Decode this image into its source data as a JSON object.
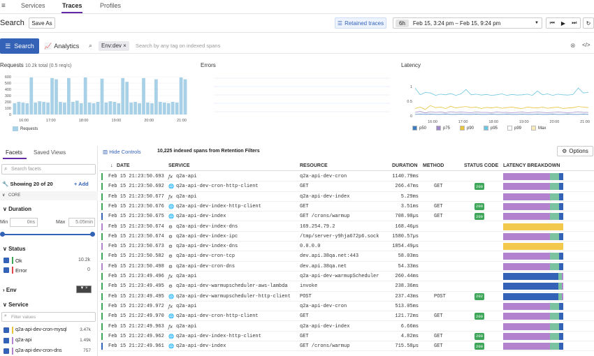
{
  "nav": {
    "tabs": [
      "Services",
      "Traces",
      "Profiles"
    ]
  },
  "header": {
    "title": "Search",
    "save_as": "Save As",
    "retained": "Retained traces",
    "range_short": "6h",
    "range": "Feb 15, 3:24 pm – Feb 15, 9:24 pm"
  },
  "query": {
    "search_btn": "Search",
    "analytics": "Analytics",
    "pill": "Env:dev",
    "placeholder": "Search by any tag on indexed spans"
  },
  "requests": {
    "title": "Requests",
    "summary": "10.2k total (0.5 req/s)",
    "legend": "Requests",
    "yticks": [
      "600",
      "500",
      "400",
      "300",
      "200",
      "100",
      "0"
    ],
    "xticks": [
      "16:00",
      "17:00",
      "18:00",
      "19:00",
      "20:00",
      "21:00"
    ],
    "values": [
      180,
      200,
      190,
      180,
      590,
      190,
      210,
      200,
      190,
      580,
      560,
      200,
      190,
      580,
      200,
      220,
      180,
      590,
      190,
      180,
      200,
      570,
      190,
      210,
      200,
      180,
      580,
      520,
      190,
      200,
      180,
      580,
      190,
      180,
      560,
      200,
      190,
      180,
      200,
      190,
      590,
      560
    ]
  },
  "errors": {
    "title": "Errors"
  },
  "latency": {
    "title": "Latency",
    "yticks": [
      "1",
      "0.5",
      "0"
    ],
    "xticks": [
      "16:00",
      "17:00",
      "18:00",
      "19:00",
      "20:00",
      "21:00"
    ],
    "legend": [
      {
        "name": "p50",
        "color": "#3d7cbf"
      },
      {
        "name": "p75",
        "color": "#9e87c7"
      },
      {
        "name": "p90",
        "color": "#e8c33b"
      },
      {
        "name": "p95",
        "color": "#6ec7e0"
      },
      {
        "name": "p99",
        "color": "#ffffff"
      },
      {
        "name": "Max",
        "color": "#f7eab8"
      }
    ]
  },
  "left": {
    "tab_facets": "Facets",
    "tab_saved": "Saved Views",
    "search_facets": "Search facets",
    "showing": "Showing 20 of 20",
    "add": "+ Add",
    "core": "CORE",
    "duration": "Duration",
    "min_label": "Min",
    "min_val": "0ns",
    "max_label": "Max",
    "max_val": "5.05min",
    "status": "Status",
    "ok": "Ok",
    "ok_count": "10.2k",
    "error": "Error",
    "error_count": "0",
    "env": "Env",
    "service": "Service",
    "filter_values": "Filter values",
    "services": [
      {
        "name": "q2a-api-dev-cron-mysql",
        "count": "3.47k",
        "color": "#e8c33b"
      },
      {
        "name": "q2a-api",
        "count": "1.49k",
        "color": "#b382cf"
      },
      {
        "name": "q2a-api-dev-cron-dns",
        "count": "757",
        "color": "#b382cf"
      }
    ]
  },
  "table": {
    "hide_controls": "Hide Controls",
    "summary": "10,225 indexed spans from Retention Filters",
    "options": "Options",
    "headers": [
      "DATE",
      "SERVICE",
      "RESOURCE",
      "DURATION",
      "METHOD",
      "STATUS CODE",
      "LATENCY BREAKDOWN"
    ],
    "rows": [
      {
        "date": "Feb 15 21:23:50.693",
        "svc": "q2a-api",
        "icon": "fx",
        "res": "q2a-api-dev-cron",
        "dur": "1140.79ms",
        "method": "",
        "status": "",
        "bar": "#3ea659",
        "lat": [
          [
            "#b382cf",
            78
          ],
          [
            "#7ac2a0",
            15
          ],
          [
            "#3462b7",
            7
          ]
        ]
      },
      {
        "date": "Feb 15 21:23:50.692",
        "svc": "q2a-api-dev-cron-http-client",
        "icon": "globe",
        "res": "GET",
        "dur": "266.47ms",
        "method": "GET",
        "status": "200",
        "bar": "#3ea659",
        "lat": [
          [
            "#b382cf",
            78
          ],
          [
            "#7ac2a0",
            15
          ],
          [
            "#3462b7",
            7
          ]
        ]
      },
      {
        "date": "Feb 15 21:23:50.677",
        "svc": "q2a-api",
        "icon": "fx",
        "res": "q2a-api-dev-index",
        "dur": "5.29ms",
        "method": "",
        "status": "",
        "bar": "#3ea659",
        "lat": [
          [
            "#b382cf",
            78
          ],
          [
            "#7ac2a0",
            15
          ],
          [
            "#3462b7",
            7
          ]
        ]
      },
      {
        "date": "Feb 15 21:23:50.676",
        "svc": "q2a-api-dev-index-http-client",
        "icon": "globe",
        "res": "GET",
        "dur": "3.51ms",
        "method": "GET",
        "status": "200",
        "bar": "#3ea659",
        "lat": [
          [
            "#b382cf",
            78
          ],
          [
            "#7ac2a0",
            15
          ],
          [
            "#3462b7",
            7
          ]
        ]
      },
      {
        "date": "Feb 15 21:23:50.675",
        "svc": "q2a-api-dev-index",
        "icon": "globe",
        "res": "GET /crons/warmup",
        "dur": "708.98µs",
        "method": "GET",
        "status": "200",
        "bar": "#3462b7",
        "lat": [
          [
            "#b382cf",
            78
          ],
          [
            "#7ac2a0",
            15
          ],
          [
            "#3462b7",
            7
          ]
        ]
      },
      {
        "date": "Feb 15 21:23:50.674",
        "svc": "q2a-api-dev-index-dns",
        "icon": "gears",
        "res": "169.254.79.2",
        "dur": "168.46µs",
        "method": "",
        "status": "",
        "bar": "#b382cf",
        "lat": [
          [
            "#f2c94c",
            100
          ]
        ]
      },
      {
        "date": "Feb 15 21:23:50.674",
        "svc": "q2a-api-dev-index-ipc",
        "icon": "gears",
        "res": "/tmp/server-y9hja672p6.sock",
        "dur": "1580.57µs",
        "method": "",
        "status": "",
        "bar": "#3ea659",
        "lat": [
          [
            "#b382cf",
            78
          ],
          [
            "#7ac2a0",
            15
          ],
          [
            "#3462b7",
            7
          ]
        ]
      },
      {
        "date": "Feb 15 21:23:50.673",
        "svc": "q2a-api-dev-index-dns",
        "icon": "gears",
        "res": "0.0.0.0",
        "dur": "1854.49µs",
        "method": "",
        "status": "",
        "bar": "#b382cf",
        "lat": [
          [
            "#f2c94c",
            100
          ]
        ]
      },
      {
        "date": "Feb 15 21:23:50.582",
        "svc": "q2a-api-dev-cron-tcp",
        "icon": "gears",
        "res": "dev.api.38qa.net:443",
        "dur": "58.03ms",
        "method": "",
        "status": "",
        "bar": "#3ea659",
        "lat": [
          [
            "#b382cf",
            78
          ],
          [
            "#7ac2a0",
            15
          ],
          [
            "#3462b7",
            7
          ]
        ]
      },
      {
        "date": "Feb 15 21:23:50.498",
        "svc": "q2a-api-dev-cron-dns",
        "icon": "gears",
        "res": "dev.api.38qa.net",
        "dur": "54.33ms",
        "method": "",
        "status": "",
        "bar": "#b382cf",
        "lat": [
          [
            "#b382cf",
            78
          ],
          [
            "#7ac2a0",
            15
          ],
          [
            "#3462b7",
            7
          ]
        ]
      },
      {
        "date": "Feb 15 21:23:49.496",
        "svc": "q2a-api",
        "icon": "fx",
        "res": "q2a-api-dev-warmupScheduler",
        "dur": "260.44ms",
        "method": "",
        "status": "",
        "bar": "#3ea659",
        "lat": [
          [
            "#3462b7",
            92
          ],
          [
            "#7ac2a0",
            6
          ],
          [
            "#b382cf",
            2
          ]
        ]
      },
      {
        "date": "Feb 15 21:23:49.495",
        "svc": "q2a-api-dev-warmupscheduler-aws-lambda",
        "icon": "gears",
        "res": "invoke",
        "dur": "238.36ms",
        "method": "",
        "status": "",
        "bar": "#3ea659",
        "lat": [
          [
            "#3462b7",
            92
          ],
          [
            "#7ac2a0",
            6
          ],
          [
            "#b382cf",
            2
          ]
        ]
      },
      {
        "date": "Feb 15 21:23:49.495",
        "svc": "q2a-api-dev-warmupscheduler-http-client",
        "icon": "globe",
        "res": "POST",
        "dur": "237.43ms",
        "method": "POST",
        "status": "202",
        "bar": "#3ea659",
        "lat": [
          [
            "#3462b7",
            92
          ],
          [
            "#7ac2a0",
            6
          ],
          [
            "#b382cf",
            2
          ]
        ]
      },
      {
        "date": "Feb 15 21:22:49.972",
        "svc": "q2a-api",
        "icon": "fx",
        "res": "q2a-api-dev-cron",
        "dur": "513.05ms",
        "method": "",
        "status": "",
        "bar": "#3ea659",
        "lat": [
          [
            "#b382cf",
            78
          ],
          [
            "#7ac2a0",
            15
          ],
          [
            "#3462b7",
            7
          ]
        ]
      },
      {
        "date": "Feb 15 21:22:49.970",
        "svc": "q2a-api-dev-cron-http-client",
        "icon": "globe",
        "res": "GET",
        "dur": "121.72ms",
        "method": "GET",
        "status": "200",
        "bar": "#3ea659",
        "lat": [
          [
            "#b382cf",
            78
          ],
          [
            "#7ac2a0",
            15
          ],
          [
            "#3462b7",
            7
          ]
        ]
      },
      {
        "date": "Feb 15 21:22:49.963",
        "svc": "q2a-api",
        "icon": "fx",
        "res": "q2a-api-dev-index",
        "dur": "6.66ms",
        "method": "",
        "status": "",
        "bar": "#3ea659",
        "lat": [
          [
            "#b382cf",
            78
          ],
          [
            "#7ac2a0",
            15
          ],
          [
            "#3462b7",
            7
          ]
        ]
      },
      {
        "date": "Feb 15 21:22:49.962",
        "svc": "q2a-api-dev-index-http-client",
        "icon": "globe",
        "res": "GET",
        "dur": "4.82ms",
        "method": "GET",
        "status": "200",
        "bar": "#3ea659",
        "lat": [
          [
            "#b382cf",
            78
          ],
          [
            "#7ac2a0",
            15
          ],
          [
            "#3462b7",
            7
          ]
        ]
      },
      {
        "date": "Feb 15 21:22:49.961",
        "svc": "q2a-api-dev-index",
        "icon": "globe",
        "res": "GET /crons/warmup",
        "dur": "715.58µs",
        "method": "GET",
        "status": "200",
        "bar": "#3462b7",
        "lat": [
          [
            "#b382cf",
            78
          ],
          [
            "#7ac2a0",
            15
          ],
          [
            "#3462b7",
            7
          ]
        ]
      }
    ]
  }
}
